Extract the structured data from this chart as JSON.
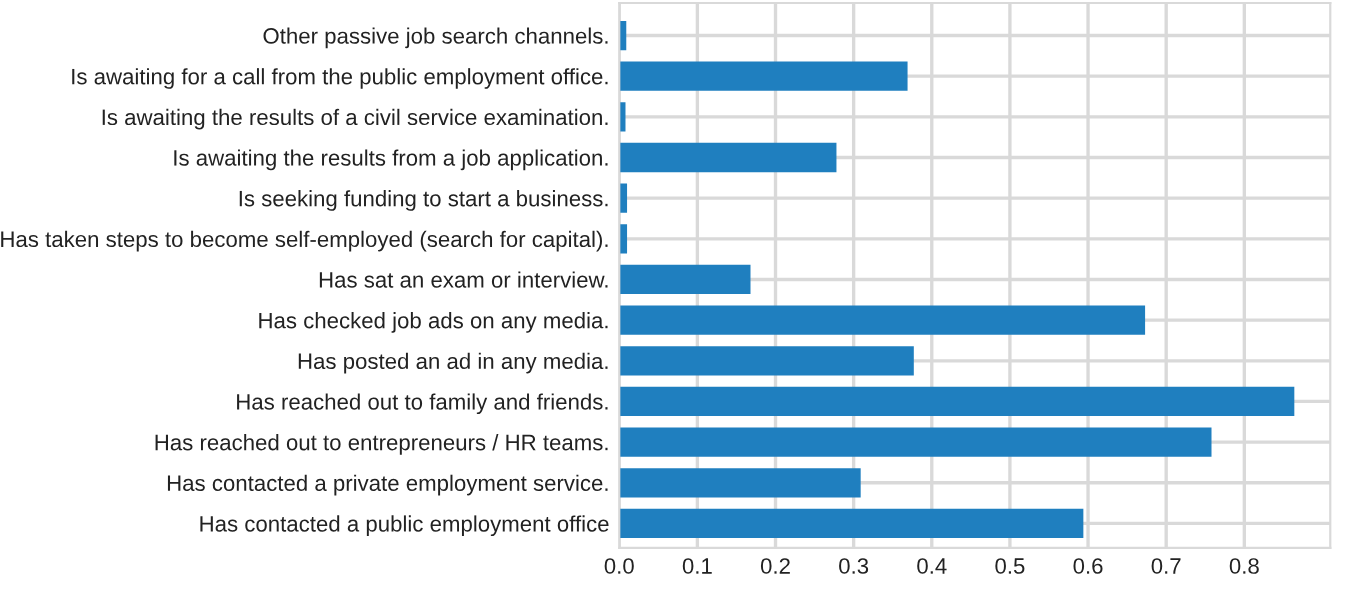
{
  "chart_data": {
    "type": "bar",
    "orientation": "horizontal",
    "categories": [
      "Other passive job search channels.",
      "Is awaiting for a call from the public employment office.",
      "Is awaiting the results of a civil service examination.",
      "Is awaiting the results from a job application.",
      "Is seeking funding to start a business.",
      "Has taken steps to become self-employed (search for capital).",
      "Has sat an exam or interview.",
      "Has checked job ads on any media.",
      "Has posted an ad in any media.",
      "Has reached out to family and friends.",
      "Has reached out to entrepreneurs / HR teams.",
      "Has contacted a private employment service.",
      "Has contacted a public employment office"
    ],
    "values": [
      0.009,
      0.369,
      0.008,
      0.278,
      0.01,
      0.01,
      0.168,
      0.673,
      0.377,
      0.864,
      0.758,
      0.309,
      0.594
    ],
    "color": "#1f7fbf",
    "xlim": [
      0,
      0.91
    ],
    "xticks": [
      {
        "value": 0,
        "label": "0.0"
      },
      0.1,
      0.2,
      0.3,
      0.4,
      0.5,
      0.6,
      0.7,
      0.8
    ],
    "grid": true
  }
}
